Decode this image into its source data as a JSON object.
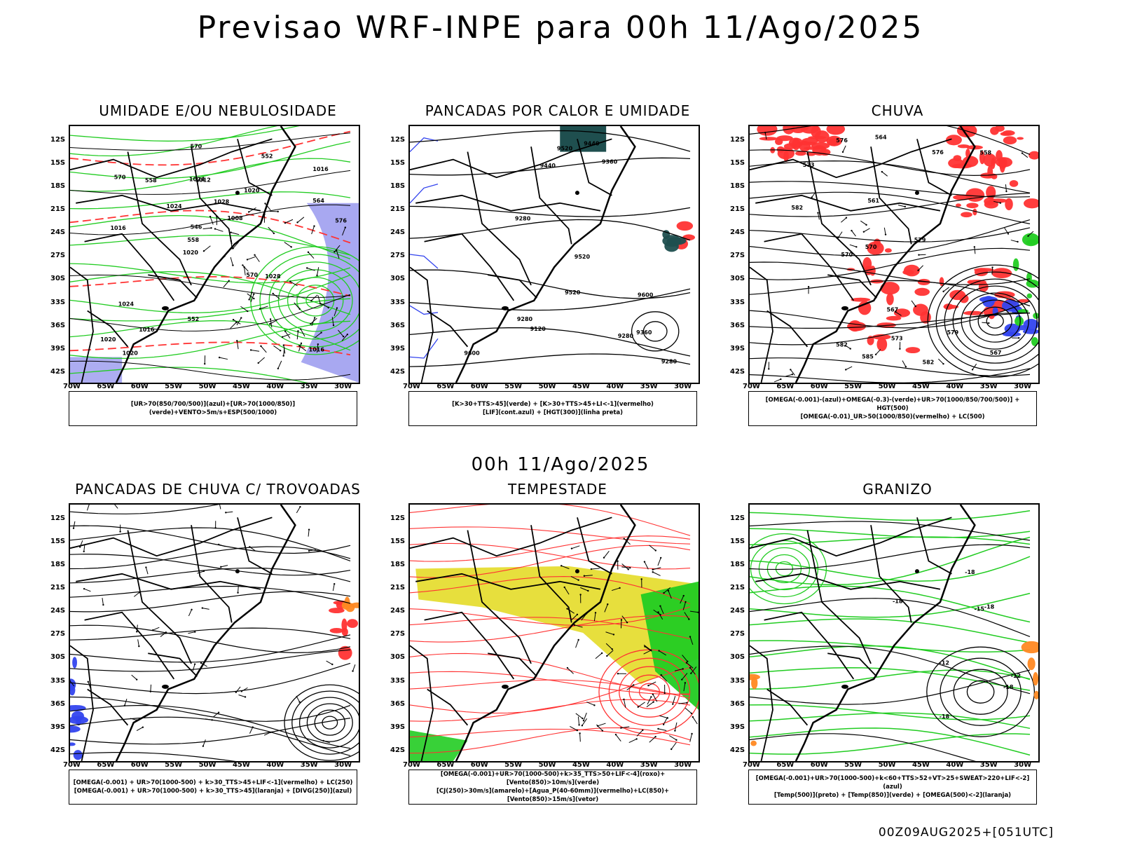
{
  "page": {
    "title": "Previsao WRF-INPE  para 00h 11/Ago/2025",
    "middle_title": "00h 11/Ago/2025",
    "footer": "00Z09AUG2025+[051UTC]"
  },
  "axes": {
    "lat_labels": [
      "12S",
      "15S",
      "18S",
      "21S",
      "24S",
      "27S",
      "30S",
      "33S",
      "36S",
      "39S",
      "42S"
    ],
    "lon_labels": [
      "70W",
      "65W",
      "60W",
      "55W",
      "50W",
      "45W",
      "40W",
      "35W",
      "30W"
    ]
  },
  "colors": {
    "green": "#22cc22",
    "red": "#ff3333",
    "blue": "#3344ee",
    "lavender": "#9999ee",
    "yellow": "#e6dd33",
    "orange": "#ff8822",
    "teal": "#1f4f4f"
  },
  "panels": [
    {
      "title": "UMIDADE E/OU NEBULOSIDADE",
      "legend": [
        "[UR>70(850/700/500)](azul)+[UR>70(1000/850)](verde)+VENTO>5m/s+ESP(500/1000)"
      ],
      "contour_labels": [
        "1016",
        "1016",
        "1016",
        "1020",
        "1020",
        "1020",
        "1024",
        "1028",
        "1024",
        "1024",
        "1020",
        "1016",
        "1012",
        "1008",
        "1028",
        "570",
        "570",
        "576",
        "570",
        "564",
        "558",
        "552",
        "546",
        "558",
        "552"
      ]
    },
    {
      "title": "PANCADAS POR CALOR E UMIDADE",
      "legend": [
        "[K>30+TTS>45](verde) + [K>30+TTS>45+LI<-1](vermelho)",
        "[LIF](cont.azul) + [HGT(300)](linha preta)"
      ],
      "contour_labels": [
        "9600",
        "9600",
        "9520",
        "9520",
        "9440",
        "9440",
        "9360",
        "9360",
        "9280",
        "9280",
        "9280",
        "9280",
        "9120",
        "9520"
      ]
    },
    {
      "title": "CHUVA",
      "legend": [
        "[OMEGA(-0.001)-(azul)+OMEGA(-0.3)-(verde)+UR>70(1000/850/700/500)] + HGT(500)",
        "[OMEGA(-0.01)_UR>50(1000/850)(vermelho) + LC(500)"
      ],
      "contour_labels": [
        "585",
        "582",
        "582",
        "579",
        "576",
        "573",
        "570",
        "567",
        "564",
        "561",
        "558",
        "573",
        "570",
        "567",
        "576",
        "579",
        "582"
      ]
    },
    {
      "title": "PANCADAS DE CHUVA C/ TROVOADAS",
      "legend": [
        "[OMEGA(-0.001) + UR>70(1000-500) + k>30_TTS>45+LIF<-1](vermelho) + LC(250)",
        "[OMEGA(-0.001) + UR>70(1000-500) + k>30_TTS>45](laranja) + [DIVG(250)](azul)"
      ],
      "contour_labels": []
    },
    {
      "title": "TEMPESTADE",
      "legend": [
        "[OMEGA(-0.001)+UR>70(1000-500)+k>35_TTS>50+LIF<-4](roxo)+[Vento(850)>10m/s](verde)",
        "[CJ(250)>30m/s](amarelo)+[Agua_P(40-60mm)](vermelho)+LC(850)+[Vento(850)>15m/s](vetor)"
      ],
      "contour_labels": []
    },
    {
      "title": "GRANIZO",
      "legend": [
        "[OMEGA(-0.001)+UR>70(1000-500)+k<60+TTS>52+VT>25+SWEAT>220+LIF<-2](azul)",
        "[Temp(500)](preto) + [Temp(850)](verde) + [OMEGA(500)<-2](laranja)"
      ],
      "contour_labels": [
        "-12",
        "-12",
        "-15",
        "-18",
        "-18",
        "-18",
        "-18",
        "-18"
      ]
    }
  ]
}
